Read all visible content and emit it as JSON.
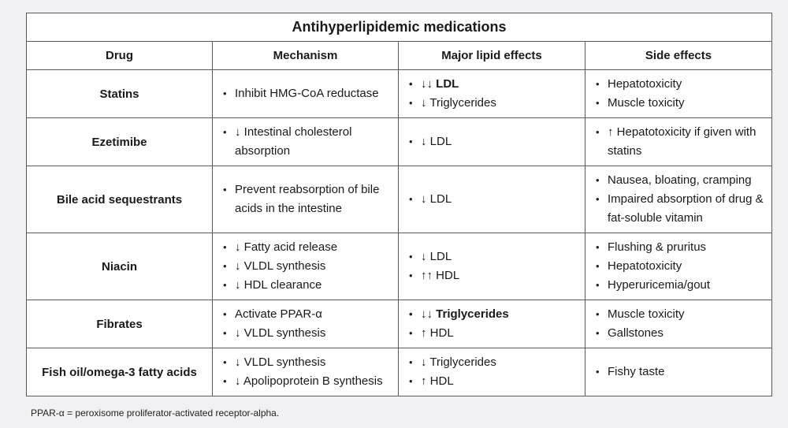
{
  "table": {
    "title": "Antihyperlipidemic medications",
    "headers": [
      "Drug",
      "Mechanism",
      "Major lipid effects",
      "Side effects"
    ],
    "rows": [
      {
        "drug": "Statins",
        "mechanism": [
          "Inhibit HMG-CoA reductase"
        ],
        "lipid": [
          {
            "t": "↓↓ LDL",
            "b": true
          },
          {
            "t": "↓ Triglycerides",
            "b": false
          }
        ],
        "side": [
          "Hepatotoxicity",
          "Muscle toxicity"
        ]
      },
      {
        "drug": "Ezetimibe",
        "mechanism": [
          "↓ Intestinal cholesterol absorption"
        ],
        "lipid": [
          {
            "t": "↓ LDL",
            "b": false
          }
        ],
        "side": [
          "↑ Hepatotoxicity if given with statins"
        ]
      },
      {
        "drug": "Bile acid sequestrants",
        "mechanism": [
          "Prevent reabsorption of bile acids in the intestine"
        ],
        "lipid": [
          {
            "t": "↓ LDL",
            "b": false
          }
        ],
        "side": [
          "Nausea, bloating, cramping",
          "Impaired absorption of drug & fat-soluble vitamin"
        ]
      },
      {
        "drug": "Niacin",
        "mechanism": [
          "↓ Fatty acid release",
          "↓ VLDL synthesis",
          "↓ HDL clearance"
        ],
        "lipid": [
          {
            "t": "↓ LDL",
            "b": false
          },
          {
            "t": "↑↑ HDL",
            "b": false
          }
        ],
        "side": [
          "Flushing & pruritus",
          "Hepatotoxicity",
          "Hyperuricemia/gout"
        ]
      },
      {
        "drug": "Fibrates",
        "mechanism": [
          "Activate PPAR-α",
          "↓ VLDL synthesis"
        ],
        "lipid": [
          {
            "t": "↓↓ Triglycerides",
            "b": true
          },
          {
            "t": "↑ HDL",
            "b": false
          }
        ],
        "side": [
          "Muscle toxicity",
          "Gallstones"
        ]
      },
      {
        "drug": "Fish oil/omega-3 fatty acids",
        "mechanism": [
          "↓ VLDL synthesis",
          "↓ Apolipoprotein B synthesis"
        ],
        "lipid": [
          {
            "t": "↓ Triglycerides",
            "b": false
          },
          {
            "t": "↑ HDL",
            "b": false
          }
        ],
        "side": [
          "Fishy taste"
        ]
      }
    ]
  },
  "footnote": "PPAR-α = peroxisome proliferator-activated receptor-alpha."
}
